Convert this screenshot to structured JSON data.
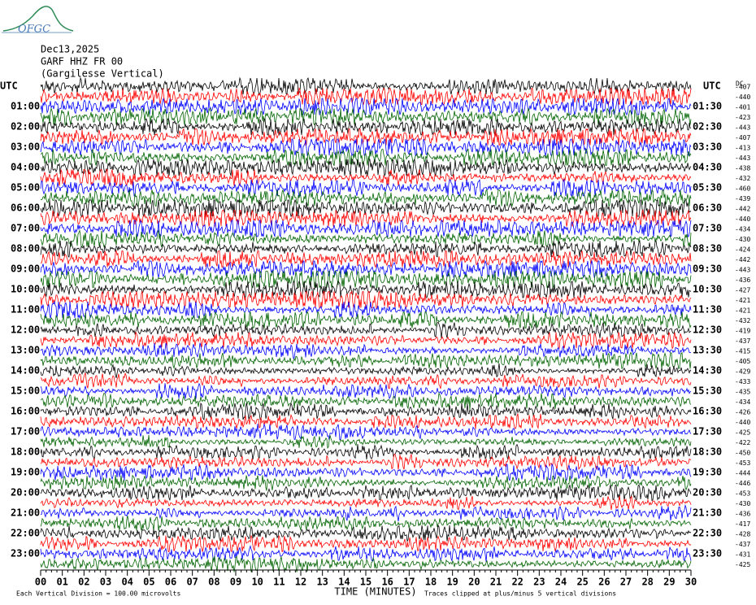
{
  "logo": "OFGC",
  "header": {
    "date": "Dec13,2025",
    "station": "GARF HHZ FR 00",
    "site": "(Gargilesse Vertical)"
  },
  "left_labels": [
    "UTC",
    "01:00",
    "02:00",
    "03:00",
    "04:00",
    "05:00",
    "06:00",
    "07:00",
    "08:00",
    "09:00",
    "10:00",
    "11:00",
    "12:00",
    "13:00",
    "14:00",
    "15:00",
    "16:00",
    "17:00",
    "18:00",
    "19:00",
    "20:00",
    "21:00",
    "22:00",
    "23:00"
  ],
  "right_labels": [
    "UTC",
    "01:30",
    "02:30",
    "03:30",
    "04:30",
    "05:30",
    "06:30",
    "07:30",
    "08:30",
    "09:30",
    "10:30",
    "11:30",
    "12:30",
    "13:30",
    "14:30",
    "15:30",
    "16:30",
    "17:30",
    "18:30",
    "19:30",
    "20:30",
    "21:30",
    "22:30",
    "23:30"
  ],
  "dc_label": "DC",
  "dc_values": [
    -407,
    -440,
    -401,
    -423,
    -443,
    -407,
    -413,
    -443,
    -438,
    -432,
    -460,
    -439,
    -442,
    -440,
    -434,
    -430,
    -424,
    -442,
    -443,
    -436,
    -427,
    -421,
    -421,
    -432,
    -419,
    -437,
    -415,
    -405,
    -429,
    -433,
    -435,
    -434,
    -426,
    -440,
    -425,
    -422,
    -450,
    -453,
    -444,
    -446,
    -453,
    -430,
    -436,
    -417,
    -428,
    -437,
    -431,
    -425
  ],
  "x_labels": [
    "00",
    "01",
    "02",
    "03",
    "04",
    "05",
    "06",
    "07",
    "08",
    "09",
    "10",
    "11",
    "12",
    "13",
    "14",
    "15",
    "16",
    "17",
    "18",
    "19",
    "20",
    "21",
    "22",
    "23",
    "24",
    "25",
    "26",
    "27",
    "28",
    "29",
    "30"
  ],
  "footer": {
    "scale": "Each Vertical Division =  100.00 microvolts",
    "axis_title": "TIME (MINUTES)",
    "clip_note": "Traces clipped at plus/minus 5 vertical divisions"
  }
}
